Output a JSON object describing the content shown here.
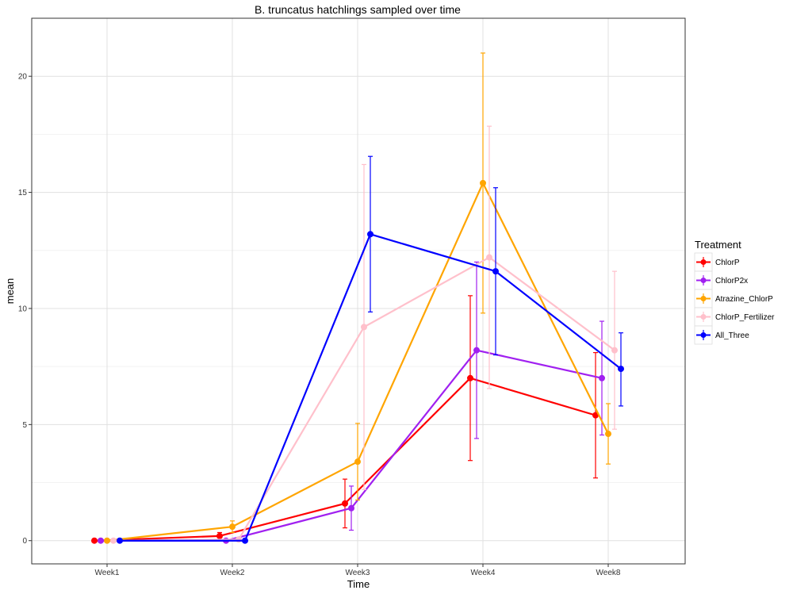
{
  "chart_data": {
    "type": "line",
    "title": "B. truncatus hatchlings sampled over time",
    "xlabel": "Time",
    "ylabel": "mean",
    "categories": [
      "Week1",
      "Week2",
      "Week3",
      "Week4",
      "Week8"
    ],
    "ylim": [
      -1,
      22.5
    ],
    "yticks": [
      0,
      5,
      10,
      15,
      20
    ],
    "grid": true,
    "legend_title": "Treatment",
    "legend_position": "right",
    "series": [
      {
        "name": "ChlorP",
        "color": "#ff0000",
        "values": [
          0,
          0.2,
          1.6,
          7.0,
          5.4
        ],
        "err_low": [
          0,
          0.05,
          0.55,
          3.45,
          2.7
        ],
        "err_high": [
          0,
          0.35,
          2.65,
          10.55,
          8.1
        ]
      },
      {
        "name": "ChlorP2x",
        "color": "#a020f0",
        "values": [
          0,
          0,
          1.4,
          8.2,
          7.0
        ],
        "err_low": [
          0,
          0,
          0.45,
          4.4,
          4.55
        ],
        "err_high": [
          0,
          0,
          2.35,
          12.0,
          9.45
        ]
      },
      {
        "name": "Atrazine_ChlorP",
        "color": "#ffa500",
        "values": [
          0,
          0.6,
          3.4,
          15.4,
          4.6
        ],
        "err_low": [
          0,
          0.35,
          1.75,
          9.8,
          3.3
        ],
        "err_high": [
          0,
          0.85,
          5.05,
          21.0,
          5.9
        ]
      },
      {
        "name": "ChlorP_Fertilizer",
        "color": "#ffc0cb",
        "values": [
          0,
          0.05,
          9.2,
          12.2,
          8.2
        ],
        "err_low": [
          0,
          0,
          2.2,
          6.55,
          4.8
        ],
        "err_high": [
          0,
          0.1,
          16.2,
          17.85,
          11.6
        ]
      },
      {
        "name": "All_Three",
        "color": "#0000ff",
        "values": [
          0,
          0,
          13.2,
          11.6,
          7.4
        ],
        "err_low": [
          0,
          0,
          9.85,
          8.0,
          5.8
        ],
        "err_high": [
          0,
          0,
          16.55,
          15.2,
          8.95
        ]
      }
    ]
  }
}
